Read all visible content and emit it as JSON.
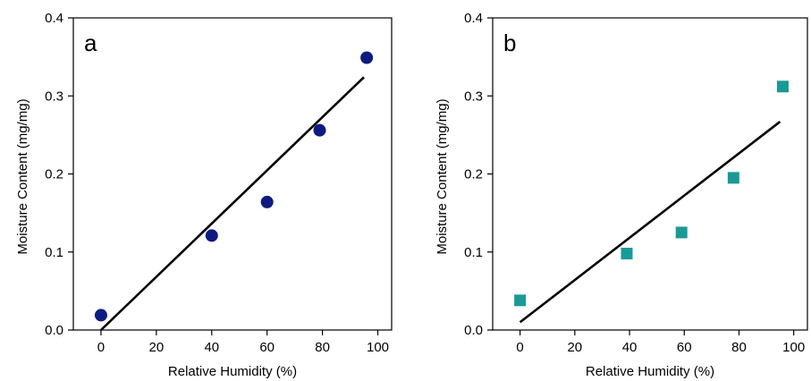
{
  "chart_data": [
    {
      "type": "scatter",
      "panel_label": "a",
      "xlabel": "Relative Humidity (%)",
      "ylabel": "Moisture Content (mg/mg)",
      "xlim": [
        -10,
        105
      ],
      "ylim": [
        0.0,
        0.4
      ],
      "x_ticks": [
        0,
        20,
        40,
        60,
        80,
        100
      ],
      "y_ticks": [
        0.0,
        0.1,
        0.2,
        0.3,
        0.4
      ],
      "y_tick_labels": [
        "0.0",
        "0.1",
        "0.2",
        "0.3",
        "0.4"
      ],
      "grid": false,
      "marker": "circle",
      "color": "#0d1a80",
      "points": [
        {
          "x": 0,
          "y": 0.019
        },
        {
          "x": 40,
          "y": 0.121
        },
        {
          "x": 60,
          "y": 0.164
        },
        {
          "x": 79,
          "y": 0.256
        },
        {
          "x": 96,
          "y": 0.349
        }
      ],
      "fit_line": {
        "x": [
          0,
          95
        ],
        "y": [
          0.0,
          0.324
        ]
      }
    },
    {
      "type": "scatter",
      "panel_label": "b",
      "xlabel": "Relative Humidity (%)",
      "ylabel": "Moisture Content (mg/mg)",
      "xlim": [
        -10,
        105
      ],
      "ylim": [
        0.0,
        0.4
      ],
      "x_ticks": [
        0,
        20,
        40,
        60,
        80,
        100
      ],
      "y_ticks": [
        0.0,
        0.1,
        0.2,
        0.3,
        0.4
      ],
      "y_tick_labels": [
        "0.0",
        "0.1",
        "0.2",
        "0.3",
        "0.4"
      ],
      "grid": false,
      "marker": "square",
      "color": "#1a9a96",
      "points": [
        {
          "x": 0,
          "y": 0.038
        },
        {
          "x": 39,
          "y": 0.098
        },
        {
          "x": 59,
          "y": 0.125
        },
        {
          "x": 78,
          "y": 0.195
        },
        {
          "x": 96,
          "y": 0.312
        }
      ],
      "fit_line": {
        "x": [
          0,
          95
        ],
        "y": [
          0.01,
          0.267
        ]
      }
    }
  ]
}
